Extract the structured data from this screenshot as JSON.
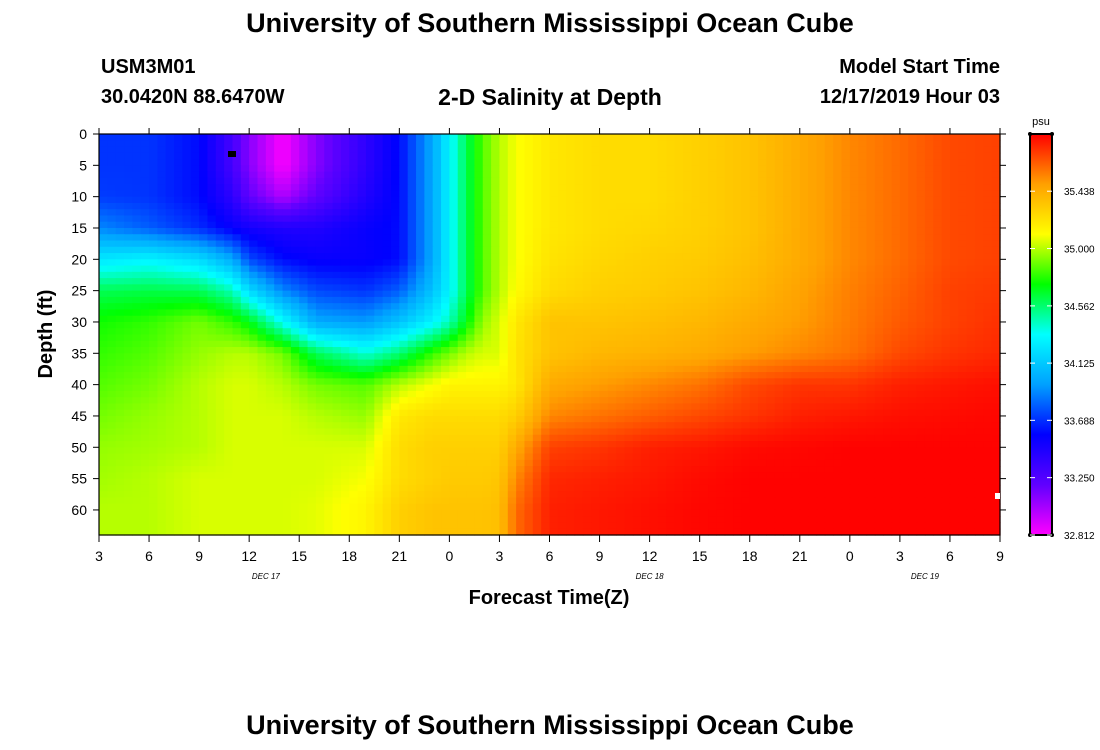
{
  "page": {
    "title_top": "University of Southern Mississippi Ocean Cube",
    "title_bottom": "University of Southern Mississippi Ocean Cube",
    "station_id": "USM3M01",
    "station_coords": "30.0420N 88.6470W",
    "plot_title": "2-D Salinity at Depth",
    "model_start_label": "Model Start Time",
    "model_start_value": "12/17/2019 Hour 03"
  },
  "chart_data": {
    "type": "heatmap",
    "title": "2-D Salinity at Depth",
    "xlabel": "Forecast Time(Z)",
    "ylabel": "Depth (ft)",
    "x_tick_labels": [
      "3",
      "6",
      "9",
      "12",
      "15",
      "18",
      "21",
      "0",
      "3",
      "6",
      "9",
      "12",
      "15",
      "18",
      "21",
      "0",
      "3",
      "6",
      "9"
    ],
    "x_range_hours": [
      0,
      54
    ],
    "day_labels": [
      {
        "label": "DEC 17",
        "hour": 10
      },
      {
        "label": "DEC 18",
        "hour": 33
      },
      {
        "label": "DEC 19",
        "hour": 49.5
      }
    ],
    "y_ticks": [
      0,
      5,
      10,
      15,
      20,
      25,
      30,
      35,
      40,
      45,
      50,
      55,
      60
    ],
    "ylim": [
      0,
      64
    ],
    "colorbar": {
      "unit": "psu",
      "ticks": [
        35.438,
        35.0,
        34.562,
        34.125,
        33.688,
        33.25,
        32.812
      ],
      "tick_labels": [
        "35.438",
        "35.000",
        "34.562",
        "34.125",
        "33.688",
        "33.250",
        "32.812"
      ],
      "range": [
        32.812,
        35.875
      ],
      "colors": [
        "#ff00ff",
        "#6000ff",
        "#0000ff",
        "#00a0ff",
        "#00ffff",
        "#00ff00",
        "#ffff00",
        "#ffa000",
        "#ff0000"
      ]
    },
    "salinity_grid": {
      "hours": [
        0,
        3,
        6,
        8,
        9,
        11,
        13,
        16,
        18,
        20,
        21,
        22,
        23,
        24,
        25,
        27,
        30,
        33,
        36,
        39,
        42,
        45,
        48,
        51,
        54
      ],
      "depths": [
        0,
        5,
        10,
        15,
        20,
        25,
        30,
        35,
        40,
        45,
        50,
        55,
        60,
        64
      ],
      "values": [
        [
          33.7,
          33.7,
          33.6,
          33.3,
          33.1,
          32.82,
          33.1,
          33.4,
          33.6,
          34.0,
          34.3,
          34.6,
          34.85,
          35.0,
          35.1,
          35.2,
          35.25,
          35.25,
          35.3,
          35.35,
          35.45,
          35.55,
          35.62,
          35.7,
          35.72
        ],
        [
          33.7,
          33.7,
          33.6,
          33.3,
          33.1,
          32.82,
          33.1,
          33.4,
          33.6,
          34.0,
          34.3,
          34.6,
          34.85,
          35.0,
          35.1,
          35.2,
          35.25,
          35.25,
          35.3,
          35.35,
          35.45,
          35.55,
          35.62,
          35.7,
          35.72
        ],
        [
          33.72,
          33.7,
          33.6,
          33.4,
          33.2,
          33.0,
          33.2,
          33.45,
          33.6,
          34.0,
          34.3,
          34.6,
          34.85,
          35.0,
          35.1,
          35.2,
          35.25,
          35.25,
          35.3,
          35.35,
          35.45,
          35.55,
          35.62,
          35.7,
          35.72
        ],
        [
          33.9,
          33.8,
          33.68,
          33.55,
          33.5,
          33.45,
          33.45,
          33.55,
          33.6,
          34.0,
          34.3,
          34.6,
          34.85,
          35.0,
          35.1,
          35.2,
          35.25,
          35.27,
          35.3,
          35.35,
          35.45,
          35.55,
          35.62,
          35.7,
          35.72
        ],
        [
          34.25,
          34.3,
          34.2,
          34.0,
          33.75,
          33.6,
          33.55,
          33.55,
          33.6,
          34.0,
          34.3,
          34.6,
          34.85,
          35.0,
          35.1,
          35.22,
          35.27,
          35.3,
          35.32,
          35.37,
          35.45,
          35.55,
          35.62,
          35.7,
          35.72
        ],
        [
          34.6,
          34.62,
          34.6,
          34.45,
          34.2,
          33.9,
          33.75,
          33.7,
          33.8,
          34.1,
          34.3,
          34.6,
          34.85,
          35.0,
          35.12,
          35.25,
          35.3,
          35.32,
          35.35,
          35.4,
          35.48,
          35.57,
          35.64,
          35.72,
          35.74
        ],
        [
          34.75,
          34.8,
          34.9,
          34.8,
          34.7,
          34.35,
          34.0,
          33.95,
          34.1,
          34.3,
          34.45,
          34.7,
          34.95,
          35.05,
          35.2,
          35.35,
          35.35,
          35.37,
          35.4,
          35.45,
          35.5,
          35.58,
          35.66,
          35.72,
          35.76
        ],
        [
          34.8,
          34.85,
          34.95,
          35.0,
          35.0,
          34.9,
          34.6,
          34.4,
          34.55,
          34.8,
          34.9,
          35.0,
          35.05,
          35.05,
          35.22,
          35.35,
          35.4,
          35.42,
          35.45,
          35.5,
          35.55,
          35.6,
          35.7,
          35.75,
          35.78
        ],
        [
          34.85,
          34.9,
          35.0,
          35.05,
          35.05,
          35.0,
          34.9,
          34.85,
          35.0,
          35.1,
          35.15,
          35.15,
          35.15,
          35.15,
          35.2,
          35.45,
          35.5,
          35.55,
          35.6,
          35.7,
          35.75,
          35.75,
          35.8,
          35.82,
          35.84
        ],
        [
          34.9,
          34.95,
          35.0,
          35.05,
          35.05,
          35.05,
          35.0,
          34.95,
          35.2,
          35.25,
          35.25,
          35.25,
          35.25,
          35.25,
          35.3,
          35.55,
          35.6,
          35.65,
          35.7,
          35.75,
          35.8,
          35.82,
          35.84,
          35.85,
          35.86
        ],
        [
          34.95,
          34.97,
          35.0,
          35.05,
          35.05,
          35.05,
          35.05,
          35.05,
          35.25,
          35.3,
          35.3,
          35.3,
          35.3,
          35.3,
          35.45,
          35.72,
          35.75,
          35.8,
          35.82,
          35.85,
          35.86,
          35.87,
          35.87,
          35.87,
          35.87
        ],
        [
          34.97,
          35.0,
          35.05,
          35.05,
          35.05,
          35.05,
          35.05,
          35.1,
          35.25,
          35.3,
          35.32,
          35.32,
          35.32,
          35.34,
          35.55,
          35.78,
          35.8,
          35.82,
          35.85,
          35.87,
          35.87,
          35.87,
          35.87,
          35.87,
          35.87
        ],
        [
          35.0,
          35.0,
          35.05,
          35.05,
          35.05,
          35.05,
          35.07,
          35.15,
          35.3,
          35.35,
          35.35,
          35.35,
          35.35,
          35.37,
          35.62,
          35.8,
          35.82,
          35.84,
          35.86,
          35.87,
          35.87,
          35.87,
          35.87,
          35.87,
          35.87
        ],
        [
          35.0,
          35.0,
          35.05,
          35.05,
          35.05,
          35.05,
          35.07,
          35.15,
          35.3,
          35.35,
          35.35,
          35.35,
          35.35,
          35.37,
          35.62,
          35.8,
          35.82,
          35.84,
          35.86,
          35.87,
          35.87,
          35.87,
          35.87,
          35.87,
          35.87
        ]
      ]
    }
  }
}
